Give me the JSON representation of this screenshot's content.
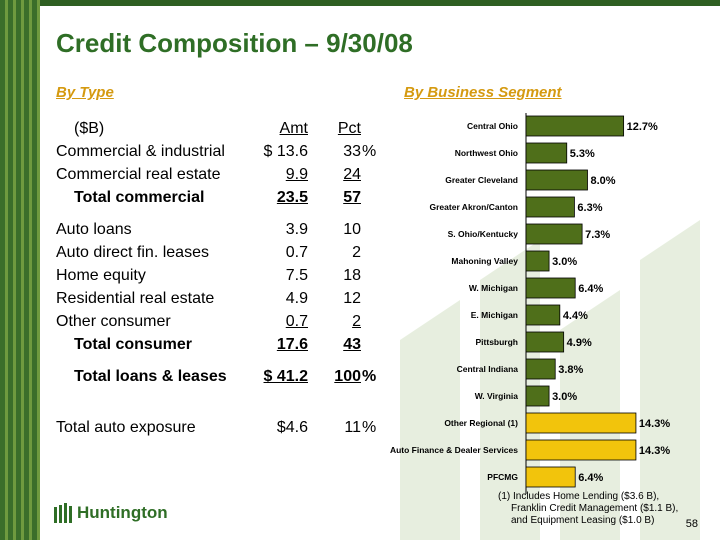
{
  "title": "Credit Composition – 9/30/08",
  "left": {
    "heading": "By Type",
    "rows": [
      {
        "label": "($B)",
        "amt": "Amt",
        "pct": "Pct",
        "pct_suffix": "",
        "style": "header"
      },
      {
        "label": "Commercial & industrial",
        "amt": "$  13.6",
        "pct": "33",
        "pct_suffix": "%",
        "style": "normal"
      },
      {
        "label": "Commercial real estate",
        "amt": "9.9",
        "pct": "24",
        "pct_suffix": "",
        "style": "underline"
      },
      {
        "label": "Total commercial",
        "amt": "23.5",
        "pct": "57",
        "pct_suffix": "",
        "style": "total"
      },
      {
        "label": "",
        "amt": "",
        "pct": "",
        "pct_suffix": "",
        "style": "spacer"
      },
      {
        "label": "Auto loans",
        "amt": "3.9",
        "pct": "10",
        "pct_suffix": "",
        "style": "normal"
      },
      {
        "label": "Auto direct fin. leases",
        "amt": "0.7",
        "pct": "2",
        "pct_suffix": "",
        "style": "normal"
      },
      {
        "label": "Home equity",
        "amt": "7.5",
        "pct": "18",
        "pct_suffix": "",
        "style": "normal"
      },
      {
        "label": "Residential real estate",
        "amt": "4.9",
        "pct": "12",
        "pct_suffix": "",
        "style": "normal"
      },
      {
        "label": "Other consumer",
        "amt": "0.7",
        "pct": "2",
        "pct_suffix": "",
        "style": "underline"
      },
      {
        "label": "Total consumer",
        "amt": "17.6",
        "pct": "43",
        "pct_suffix": "",
        "style": "total"
      },
      {
        "label": "",
        "amt": "",
        "pct": "",
        "pct_suffix": "",
        "style": "spacer"
      },
      {
        "label": "Total loans & leases",
        "amt": "$ 41.2",
        "pct": "100",
        "pct_suffix": "%",
        "style": "grand"
      },
      {
        "label": "",
        "amt": "",
        "pct": "",
        "pct_suffix": "",
        "style": "spacer"
      },
      {
        "label": "",
        "amt": "",
        "pct": "",
        "pct_suffix": "",
        "style": "spacer"
      },
      {
        "label": "Total auto exposure",
        "amt": "$4.6",
        "pct": "11",
        "pct_suffix": "%",
        "style": "normal"
      }
    ]
  },
  "right": {
    "heading": "By Business Segment"
  },
  "chart_data": {
    "type": "bar",
    "orientation": "horizontal",
    "categories": [
      "Central Ohio",
      "Northwest Ohio",
      "Greater Cleveland",
      "Greater Akron/Canton",
      "S. Ohio/Kentucky",
      "Mahoning Valley",
      "W. Michigan",
      "E. Michigan",
      "Pittsburgh",
      "Central Indiana",
      "W. Virginia",
      "Other Regional (1)",
      "Auto Finance & Dealer Services",
      "PFCMG"
    ],
    "values": [
      12.7,
      5.3,
      8.0,
      6.3,
      7.3,
      3.0,
      6.4,
      4.4,
      4.9,
      3.8,
      3.0,
      14.3,
      14.3,
      6.4
    ],
    "value_labels": [
      "12.7%",
      "5.3%",
      "8.0%",
      "6.3%",
      "7.3%",
      "3.0%",
      "6.4%",
      "4.4%",
      "4.9%",
      "3.8%",
      "3.0%",
      "14.3%",
      "14.3%",
      "6.4%"
    ],
    "colors": [
      "#4f6f1a",
      "#4f6f1a",
      "#4f6f1a",
      "#4f6f1a",
      "#4f6f1a",
      "#4f6f1a",
      "#4f6f1a",
      "#4f6f1a",
      "#4f6f1a",
      "#4f6f1a",
      "#4f6f1a",
      "#f2c40c",
      "#f2c40c",
      "#f2c40c"
    ],
    "xlim": [
      0,
      16
    ],
    "grid": false,
    "legend": "none"
  },
  "footnote": [
    "(1) Includes Home Lending ($3.6 B),",
    "Franklin Credit Management ($1.1 B),",
    "and Equipment Leasing ($1.0 B)"
  ],
  "page_number": "58",
  "logo_text": "Huntington",
  "colors": {
    "brand_green": "#2f6e26",
    "heading_gold": "#d59a10",
    "bar_green": "#4f6f1a",
    "bar_gold": "#f2c40c"
  }
}
